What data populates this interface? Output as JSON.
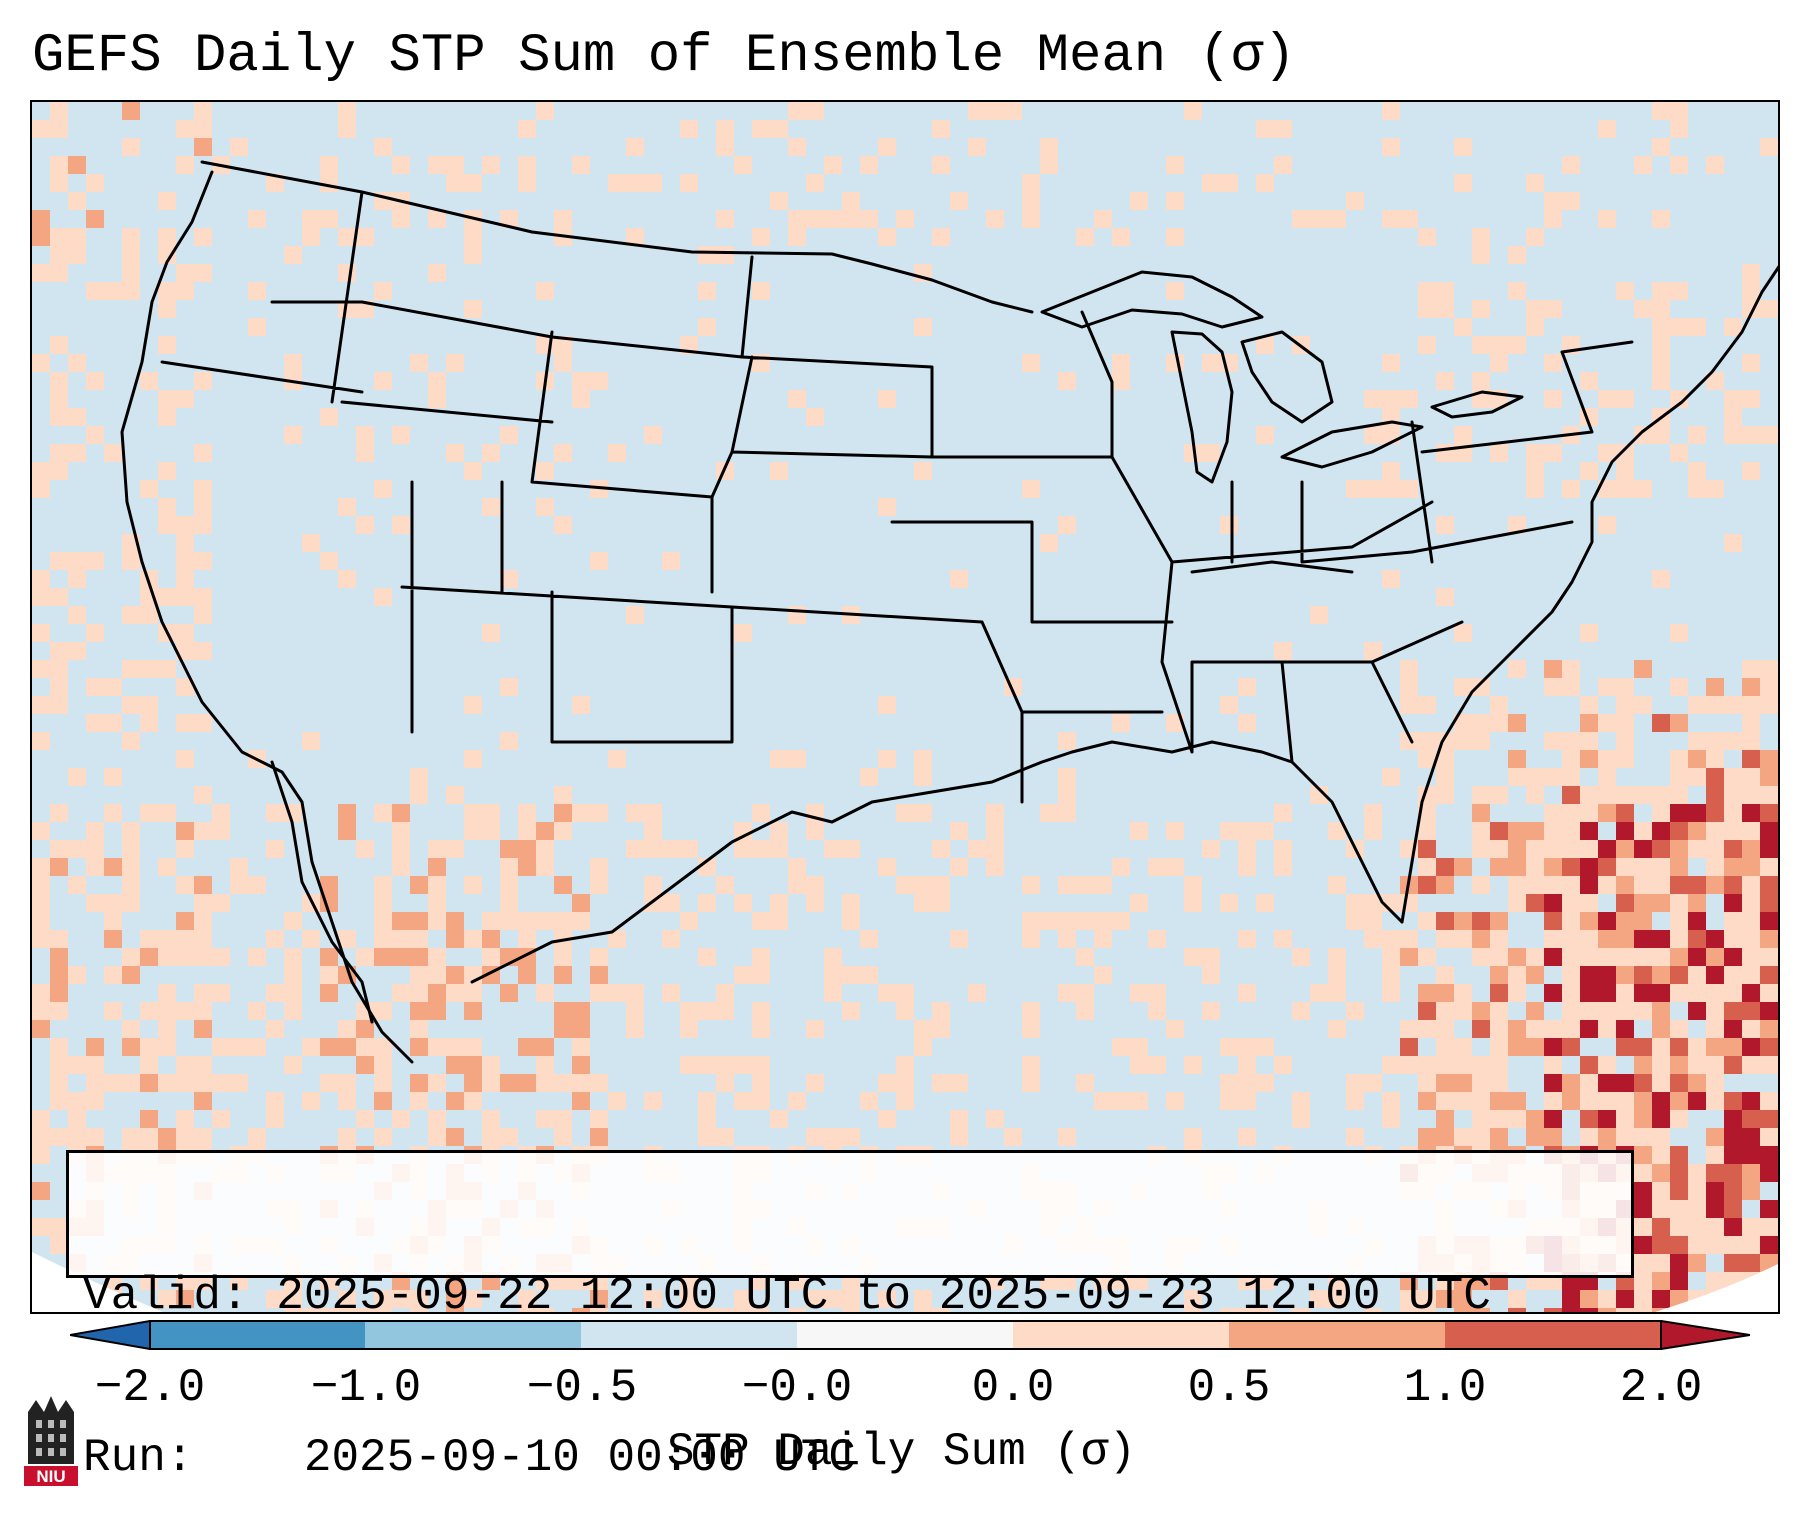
{
  "title": "GEFS Daily STP Sum of Ensemble Mean (σ)",
  "info": {
    "valid_label": "Valid:",
    "valid_value": "2025-09-22 12:00 UTC to 2025-09-23 12:00 UTC",
    "run_label": "Run:",
    "run_value": "2025-09-10 00:00 UTC"
  },
  "colorbar": {
    "label": "STP Daily Sum (σ)",
    "tick_labels": [
      "−2.0",
      "−1.0",
      "−0.5",
      "−0.0",
      "0.0",
      "0.5",
      "1.0",
      "2.0"
    ],
    "bin_colors": [
      "#4393c3",
      "#92c5de",
      "#d1e5f0",
      "#f7f7f7",
      "#fddbc7",
      "#f4a582",
      "#d6604d",
      "#b2182b"
    ],
    "extend_low_color": "#2166ac",
    "extend_high_color": "#b2182b"
  },
  "logo": {
    "text": "NIU",
    "name": "Northern Illinois University"
  },
  "map": {
    "region": "Contiguous United States",
    "background_color": "#d1e5f0",
    "field": "GEFS ensemble mean daily STP sum (σ anomaly)"
  }
}
